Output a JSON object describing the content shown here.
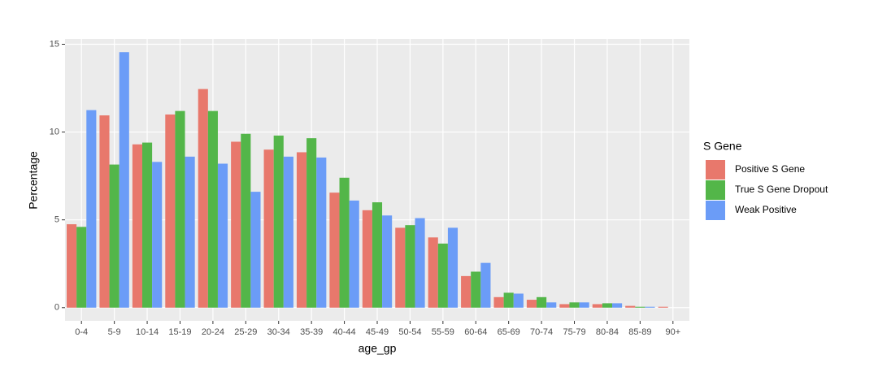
{
  "chart_data": {
    "type": "bar",
    "x_label": "age_gp",
    "y_label": "Percentage",
    "legend_title": "S Gene",
    "categories": [
      "0-4",
      "5-9",
      "10-14",
      "15-19",
      "20-24",
      "25-29",
      "30-34",
      "35-39",
      "40-44",
      "45-49",
      "50-54",
      "55-59",
      "60-64",
      "65-69",
      "70-74",
      "75-79",
      "80-84",
      "85-89",
      "90+"
    ],
    "series": [
      {
        "name": "Positive S Gene",
        "color": "#e8786c",
        "values": [
          4.75,
          10.95,
          9.3,
          11.0,
          12.45,
          9.45,
          9.0,
          8.85,
          6.55,
          5.55,
          4.55,
          4.0,
          1.8,
          0.6,
          0.45,
          0.2,
          0.2,
          0.1,
          0.05
        ]
      },
      {
        "name": "True S Gene Dropout",
        "color": "#53b649",
        "values": [
          4.6,
          8.15,
          9.4,
          11.2,
          11.2,
          9.9,
          9.8,
          9.65,
          7.4,
          6.0,
          4.7,
          3.65,
          2.05,
          0.85,
          0.6,
          0.3,
          0.25,
          0.05,
          null
        ]
      },
      {
        "name": "Weak Positive",
        "color": "#6b9cf7",
        "values": [
          11.25,
          14.55,
          8.3,
          8.6,
          8.2,
          6.6,
          8.6,
          8.55,
          6.1,
          5.25,
          5.1,
          4.55,
          2.55,
          0.8,
          0.3,
          0.3,
          0.25,
          0.05,
          null
        ]
      }
    ],
    "ylim": [
      -0.75,
      15.3
    ],
    "yticks": [
      0,
      5,
      10,
      15
    ],
    "grid": true,
    "legend": "right"
  }
}
